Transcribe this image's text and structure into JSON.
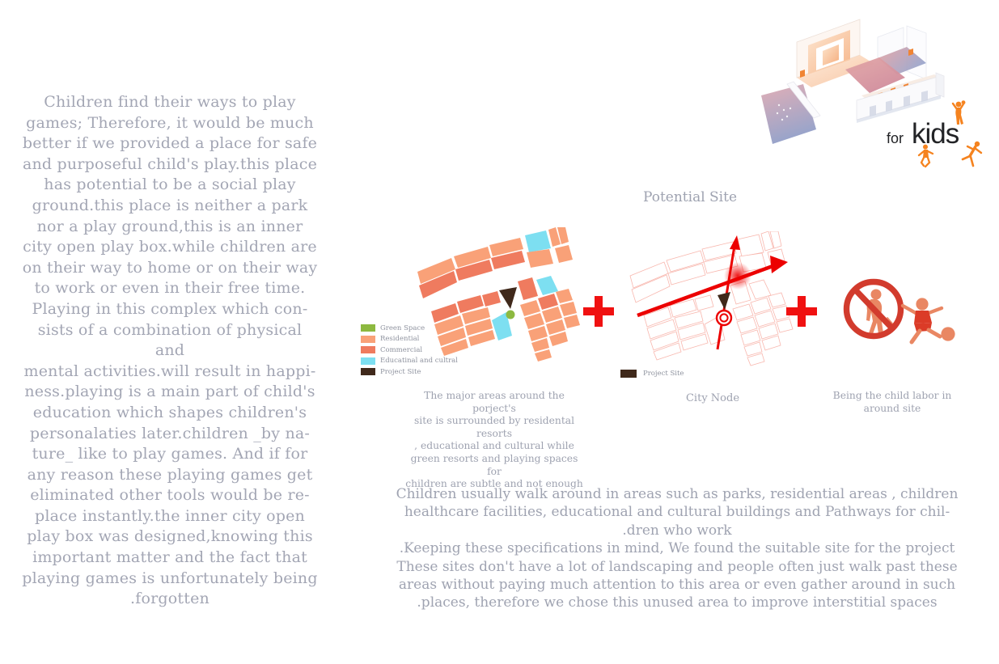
{
  "poster": {
    "left_paragraph": [
      "Children find their ways to play",
      "games; Therefore, it would be much",
      "better if we provided a place for safe",
      "and purposeful child's play.this place",
      "has potential to be a social play",
      "ground.this place is neither a park",
      "nor a play ground,this is an inner",
      "city open play box.while children are",
      "on their way to home or on their way",
      "to work or even in their free time.",
      "Playing in this complex which con-",
      "sists of a combination of physical and",
      "mental activities.will result in happi-",
      "ness.playing is a main part of child's",
      "education which shapes children's",
      "personalaties later.children _by na-",
      "ture_ like to play games. And if for",
      "any reason these playing games get",
      "eliminated other tools would be re-",
      "place instantly.the inner city open",
      "play box was designed,knowing this",
      "important matter and the fact that",
      "playing games is unfortunately being",
      ".forgotten"
    ],
    "bottom_paragraph": [
      "Children usually walk around in areas such as parks, residential areas , children",
      "healthcare facilities, educational and cultural buildings and Pathways for chil-",
      ".dren who work",
      ".Keeping these specifications in mind, We found the suitable site for the project",
      "These sites don't have a lot of landscaping and people often just walk past these",
      "areas without paying much attention to this area or even gather around in such",
      ".places, therefore we chose this unused area to improve interstitial spaces"
    ],
    "section_title": "Potential Site",
    "logo": {
      "for": "for",
      "kids": "kids"
    }
  },
  "land_use_map": {
    "legend": [
      {
        "label": "Green Space"
      },
      {
        "label": "Residential"
      },
      {
        "label": "Commercial"
      },
      {
        "label": "Educatinal and cultral"
      },
      {
        "label": "Project Site"
      }
    ],
    "caption": [
      "The major areas around the porject's",
      "site is surrounded by residental resorts",
      ", educational and cultural while",
      "green resorts and playing spaces for",
      "children are subtle and not enough"
    ]
  },
  "city_node_map": {
    "legend_label": "Project Site",
    "caption": "City Node"
  },
  "child_labor": {
    "caption": [
      "Being the child labor in",
      "around site"
    ]
  },
  "icons": {
    "plus": "+",
    "no_child_labor": "prohibition circle over working child",
    "playing_child": "child kicking ball",
    "jumping_kids": "orange jumping children silhouettes"
  },
  "colors": {
    "green_space": "#8db940",
    "residential": "#f9a178",
    "commercial": "#ef7b5f",
    "educational": "#7ddff1",
    "project_site": "#40291b",
    "map_outline": "#f8b7ae",
    "arrow_red": "#ec0000",
    "plus_red": "#f01111",
    "prohibition_red": "#d23b2d",
    "figure_salmon": "#e98763",
    "kid_red": "#db3b27",
    "logo_orange": "#f5831f",
    "text_gray": "#a3a6b4"
  }
}
